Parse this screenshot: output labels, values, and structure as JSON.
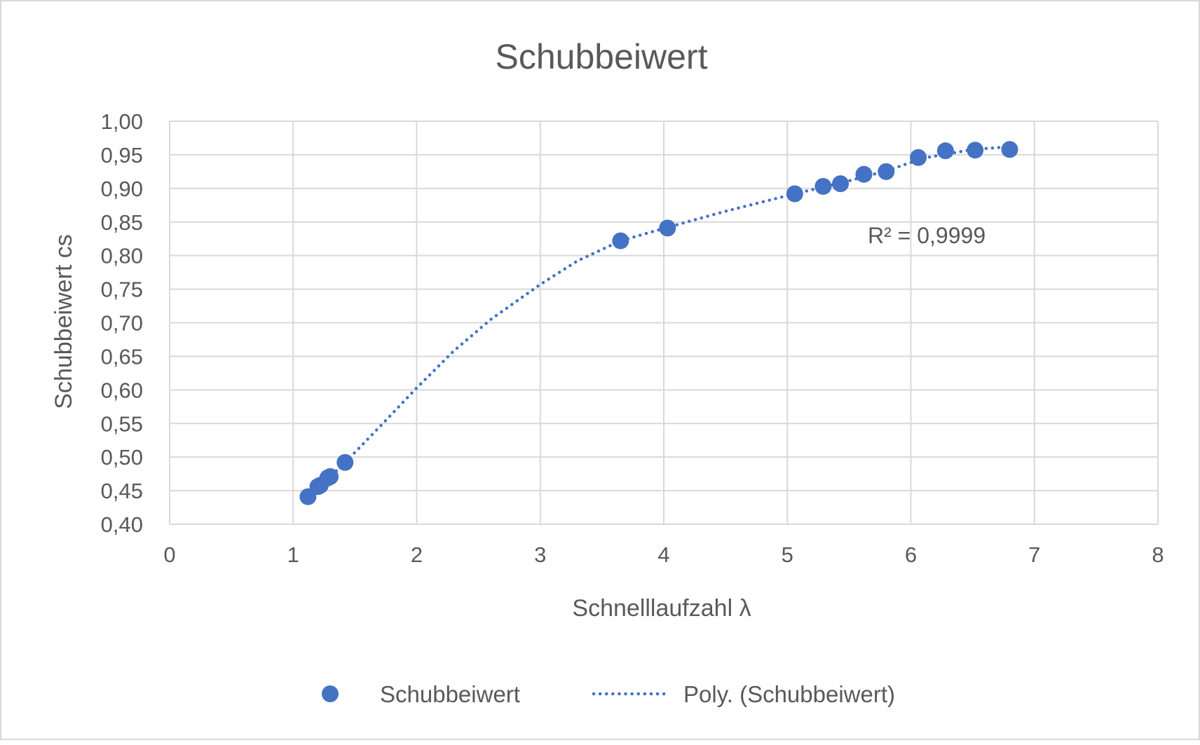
{
  "chart_data": {
    "type": "scatter",
    "title": "Schubbeiwert",
    "xlabel": "Schnelllaufzahl λ",
    "ylabel": "Schubbeiwert cs",
    "xlim": [
      0,
      8
    ],
    "ylim": [
      0.4,
      1.0
    ],
    "x_ticks": [
      "0",
      "1",
      "2",
      "3",
      "4",
      "5",
      "6",
      "7",
      "8"
    ],
    "y_ticks": [
      "0,40",
      "0,45",
      "0,50",
      "0,55",
      "0,60",
      "0,65",
      "0,70",
      "0,75",
      "0,80",
      "0,85",
      "0,90",
      "0,95",
      "1,00"
    ],
    "grid": true,
    "legend_position": "bottom",
    "series": [
      {
        "name": "Schubbeiwert",
        "marker": "circle",
        "color": "#4472c4",
        "x": [
          1.12,
          1.2,
          1.22,
          1.28,
          1.3,
          1.42,
          3.65,
          4.03,
          5.06,
          5.29,
          5.43,
          5.62,
          5.8,
          6.06,
          6.28,
          6.52,
          6.8
        ],
        "y": [
          0.441,
          0.456,
          0.458,
          0.469,
          0.471,
          0.492,
          0.822,
          0.841,
          0.892,
          0.903,
          0.907,
          0.921,
          0.925,
          0.946,
          0.956,
          0.957,
          0.958
        ]
      }
    ],
    "trendline": {
      "name": "Poly. (Schubbeiwert)",
      "style": "dotted",
      "color": "#4472c4",
      "x": [
        1.12,
        1.4,
        1.7,
        2.0,
        2.3,
        2.6,
        3.0,
        3.3,
        3.65,
        4.03,
        4.5,
        5.06,
        5.43,
        5.8,
        6.1,
        6.5,
        6.8
      ],
      "y": [
        0.441,
        0.488,
        0.545,
        0.603,
        0.658,
        0.705,
        0.757,
        0.792,
        0.822,
        0.842,
        0.866,
        0.892,
        0.908,
        0.926,
        0.945,
        0.958,
        0.962
      ]
    },
    "annotation": "R² = 0,9999"
  },
  "colors": {
    "series": "#4472c4",
    "grid": "#d9d9d9",
    "text": "#595959",
    "border": "#d9d9d9"
  }
}
